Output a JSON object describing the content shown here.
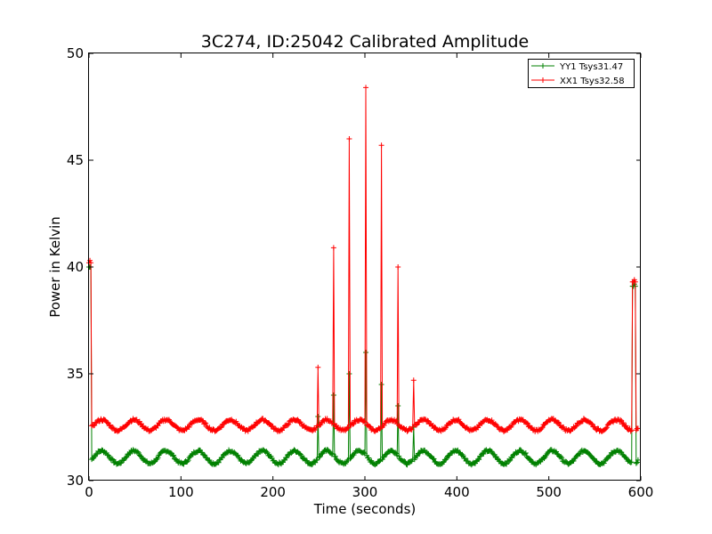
{
  "chart_data": {
    "type": "line",
    "title": "3C274, ID:25042 Calibrated Amplitude",
    "xlabel": "Time (seconds)",
    "ylabel": "Power in Kelvin",
    "xlim": [
      0,
      600
    ],
    "ylim": [
      30,
      50
    ],
    "xticks": [
      0,
      100,
      200,
      300,
      400,
      500,
      600
    ],
    "yticks": [
      30,
      35,
      40,
      45,
      50
    ],
    "grid": false,
    "legend_position": "top-right",
    "marker": "+",
    "series": [
      {
        "name": "YY1 Tsys31.47",
        "color": "#008000",
        "baseline": 31.1,
        "oscillation_amplitude": 0.3,
        "oscillation_period_s": 35,
        "spikes": [
          {
            "x": 0,
            "y": 40.0
          },
          {
            "x": 1,
            "y": 40.0
          },
          {
            "x": 2,
            "y": 40.0
          },
          {
            "x": 249,
            "y": 33.0
          },
          {
            "x": 266,
            "y": 34.0
          },
          {
            "x": 283,
            "y": 35.0
          },
          {
            "x": 301,
            "y": 36.0
          },
          {
            "x": 318,
            "y": 34.5
          },
          {
            "x": 336,
            "y": 33.5
          },
          {
            "x": 353,
            "y": 32.5
          },
          {
            "x": 591,
            "y": 39.1
          },
          {
            "x": 592,
            "y": 39.1
          },
          {
            "x": 593,
            "y": 39.2
          },
          {
            "x": 594,
            "y": 39.1
          }
        ]
      },
      {
        "name": "XX1 Tsys32.58",
        "color": "#ff0000",
        "baseline": 32.6,
        "oscillation_amplitude": 0.25,
        "oscillation_period_s": 35,
        "spikes": [
          {
            "x": 0,
            "y": 40.2
          },
          {
            "x": 1,
            "y": 40.3
          },
          {
            "x": 2,
            "y": 40.2
          },
          {
            "x": 249,
            "y": 35.3
          },
          {
            "x": 266,
            "y": 40.9
          },
          {
            "x": 283,
            "y": 46.0
          },
          {
            "x": 301,
            "y": 48.4
          },
          {
            "x": 318,
            "y": 45.7
          },
          {
            "x": 336,
            "y": 40.0
          },
          {
            "x": 353,
            "y": 34.7
          },
          {
            "x": 591,
            "y": 39.3
          },
          {
            "x": 592,
            "y": 39.3
          },
          {
            "x": 593,
            "y": 39.4
          },
          {
            "x": 594,
            "y": 39.3
          }
        ]
      }
    ]
  }
}
